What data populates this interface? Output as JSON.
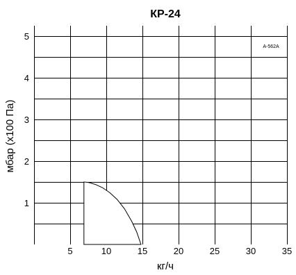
{
  "chart_data": {
    "type": "area",
    "title": "КР-24",
    "xlabel": "кг/ч",
    "ylabel": "мбар (x100 Па)",
    "annotation": "A-562A",
    "xlim": [
      0,
      35
    ],
    "ylim": [
      0,
      5.25
    ],
    "x_ticks": [
      5,
      10,
      15,
      20,
      25,
      30,
      35
    ],
    "y_ticks": [
      1,
      2,
      3,
      4,
      5
    ],
    "grid": true,
    "series": [
      {
        "x": [
          6.9,
          6.9,
          7.5,
          8.5,
          9.5,
          10.5,
          11.5,
          12.5,
          13.5,
          14.2,
          14.8
        ],
        "y": [
          0,
          1.5,
          1.49,
          1.44,
          1.36,
          1.24,
          1.08,
          0.86,
          0.56,
          0.3,
          0
        ],
        "fill": "#ffffff",
        "stroke": "#000000"
      }
    ]
  }
}
